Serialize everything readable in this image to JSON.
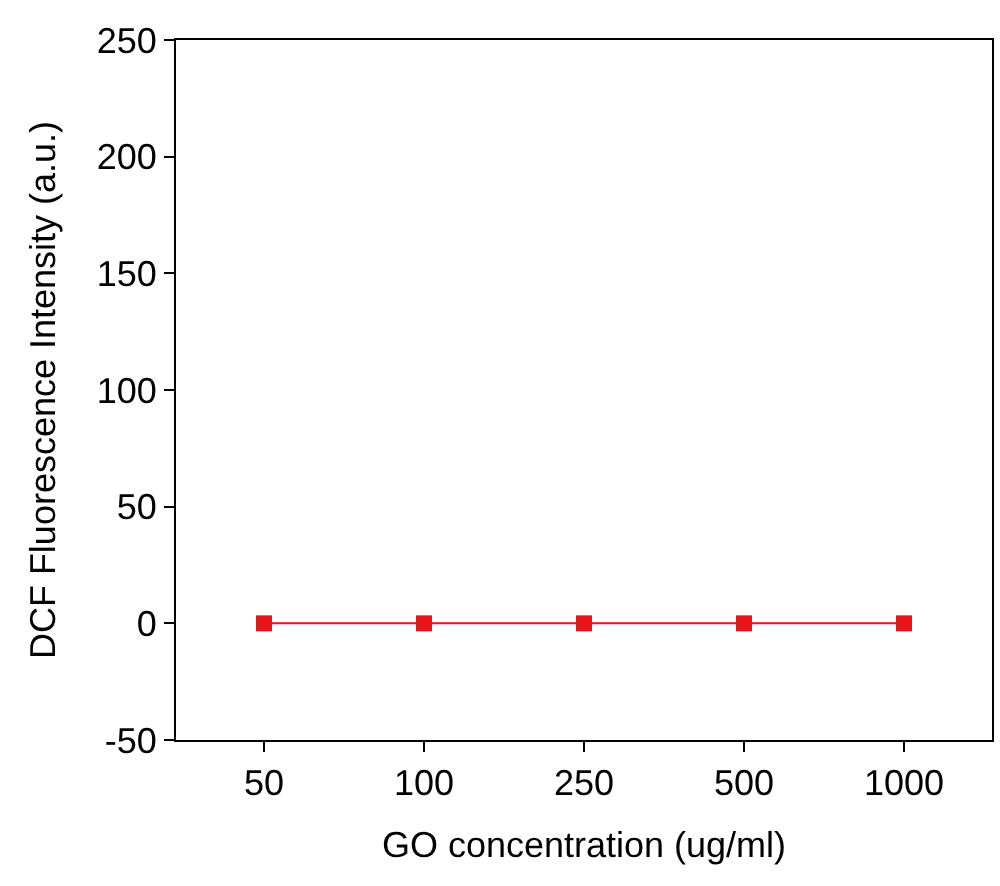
{
  "chart_data": {
    "type": "line",
    "xlabel": "GO concentration (ug/ml)",
    "ylabel": "DCF Fluorescence Intensity (a.u.)",
    "categories": [
      "50",
      "100",
      "250",
      "500",
      "1000"
    ],
    "series": [
      {
        "color": "#e8141b",
        "values": [
          0,
          0,
          0,
          0,
          0
        ]
      }
    ],
    "ylim": [
      -50,
      250
    ],
    "yticks": [
      -50,
      0,
      50,
      100,
      150,
      200,
      250
    ],
    "marker": "square",
    "line_style": "solid",
    "legend": false
  }
}
